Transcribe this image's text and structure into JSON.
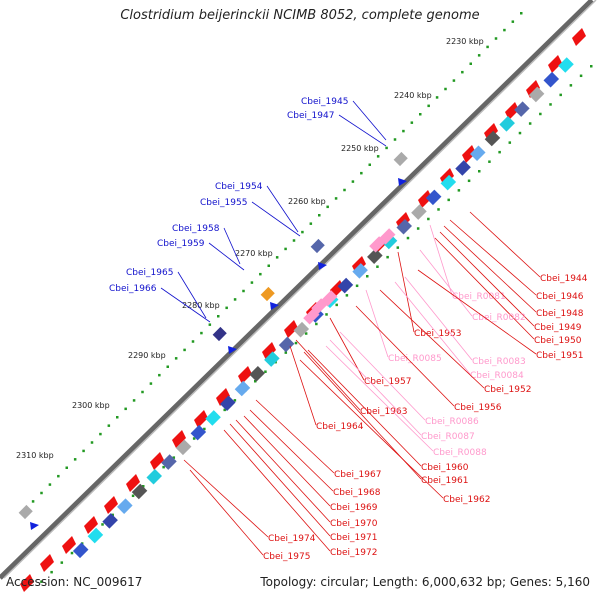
{
  "title": "Clostridium beijerinckii NCIMB 8052, complete genome",
  "footer": {
    "accession": "Accession: NC_009617",
    "summary": "Topology: circular; Length: 6,000,632 bp; Genes: 5,160"
  },
  "ticks": [
    "2230 kbp",
    "2240 kbp",
    "2250 kbp",
    "2260 kbp",
    "2270 kbp",
    "2280 kbp",
    "2290 kbp",
    "2300 kbp",
    "2310 kbp"
  ],
  "colors": {
    "forward_gene": "#ee1111",
    "rna": "#ff99cc",
    "backbone": "#888888",
    "label_blue": "#1111cc",
    "label_red": "#dd1111",
    "tick": "#229922"
  },
  "outer_labels": [
    "Cbei_1945",
    "Cbei_1947",
    "Cbei_1954",
    "Cbei_1955",
    "Cbei_1958",
    "Cbei_1959",
    "Cbei_1965",
    "Cbei_1966"
  ],
  "inner_labels": [
    {
      "text": "Cbei_1944",
      "kind": "gene"
    },
    {
      "text": "Cbei_1946",
      "kind": "gene"
    },
    {
      "text": "Cbei_R0081",
      "kind": "rna"
    },
    {
      "text": "Cbei_1948",
      "kind": "gene"
    },
    {
      "text": "Cbei_1949",
      "kind": "gene"
    },
    {
      "text": "Cbei_1950",
      "kind": "gene"
    },
    {
      "text": "Cbei_R0082",
      "kind": "rna"
    },
    {
      "text": "Cbei_1953",
      "kind": "gene"
    },
    {
      "text": "Cbei_1951",
      "kind": "gene"
    },
    {
      "text": "Cbei_R0083",
      "kind": "rna"
    },
    {
      "text": "Cbei_R0085",
      "kind": "rna"
    },
    {
      "text": "Cbei_R0084",
      "kind": "rna"
    },
    {
      "text": "Cbei_1952",
      "kind": "gene"
    },
    {
      "text": "Cbei_1957",
      "kind": "gene"
    },
    {
      "text": "Cbei_1956",
      "kind": "gene"
    },
    {
      "text": "Cbei_1963",
      "kind": "gene"
    },
    {
      "text": "Cbei_R0086",
      "kind": "rna"
    },
    {
      "text": "Cbei_1964",
      "kind": "gene"
    },
    {
      "text": "Cbei_R0087",
      "kind": "rna"
    },
    {
      "text": "Cbei_R0088",
      "kind": "rna"
    },
    {
      "text": "Cbei_1960",
      "kind": "gene"
    },
    {
      "text": "Cbei_1961",
      "kind": "gene"
    },
    {
      "text": "Cbei_1967",
      "kind": "gene"
    },
    {
      "text": "Cbei_1968",
      "kind": "gene"
    },
    {
      "text": "Cbei_1962",
      "kind": "gene"
    },
    {
      "text": "Cbei_1969",
      "kind": "gene"
    },
    {
      "text": "Cbei_1970",
      "kind": "gene"
    },
    {
      "text": "Cbei_1971",
      "kind": "gene"
    },
    {
      "text": "Cbei_1974",
      "kind": "gene"
    },
    {
      "text": "Cbei_1972",
      "kind": "gene"
    },
    {
      "text": "Cbei_1975",
      "kind": "gene"
    }
  ]
}
